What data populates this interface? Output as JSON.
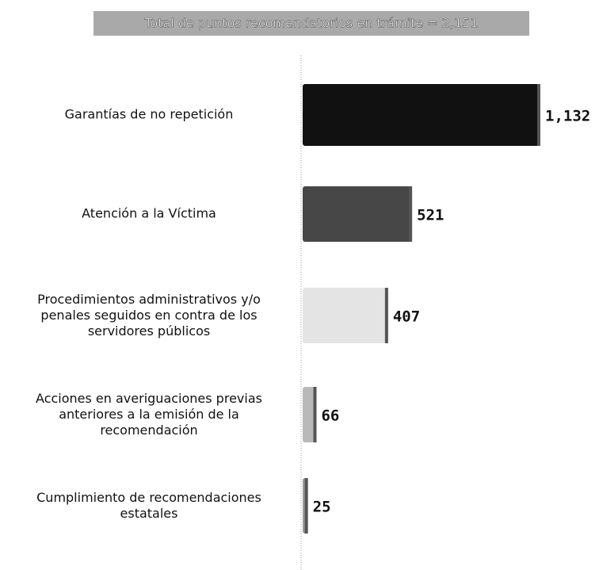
{
  "chart_data": {
    "type": "bar",
    "orientation": "horizontal",
    "title": "Total de puntos recomendatorios en trámite = 2,151",
    "categories": [
      "Garantías de no repetición",
      "Atención a la Víctima",
      "Procedimientos administrativos y/o\npenales seguidos en contra de los\nservidores públicos",
      "Acciones en averiguaciones previas\nanteriores a la emisión de la\nrecomendación",
      "Cumplimiento de recomendaciones\nestatales"
    ],
    "values": [
      1132,
      521,
      407,
      66,
      25
    ],
    "value_labels": [
      "1,132",
      "521",
      "407",
      "66",
      "25"
    ],
    "colors": [
      "#111111",
      "#474747",
      "#e4e4e4",
      "#b9b9b9",
      "#9a9a9a"
    ]
  }
}
